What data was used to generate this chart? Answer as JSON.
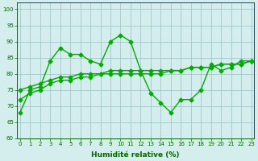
{
  "line1": {
    "x": [
      0,
      1,
      2,
      3,
      4,
      5,
      6,
      7,
      8,
      9,
      10,
      11,
      12,
      13,
      14,
      15,
      16,
      17,
      18,
      19,
      20,
      21,
      22,
      23
    ],
    "y": [
      68,
      75,
      76,
      84,
      88,
      86,
      86,
      84,
      83,
      90,
      92,
      90,
      81,
      74,
      71,
      68,
      72,
      72,
      75,
      83,
      81,
      82,
      84,
      84
    ]
  },
  "line2": {
    "x": [
      0,
      1,
      2,
      3,
      4,
      5,
      6,
      7,
      8,
      9,
      10,
      11,
      12,
      13,
      14,
      15,
      16,
      17,
      18,
      19,
      20,
      21,
      22,
      23
    ],
    "y": [
      72,
      74,
      75,
      77,
      78,
      78,
      79,
      79,
      80,
      80,
      80,
      80,
      80,
      80,
      80,
      81,
      81,
      82,
      82,
      82,
      83,
      83,
      83,
      84
    ]
  },
  "line3": {
    "x": [
      0,
      1,
      2,
      3,
      4,
      5,
      6,
      7,
      8,
      9,
      10,
      11,
      12,
      13,
      14,
      15,
      16,
      17,
      18,
      19,
      20,
      21,
      22,
      23
    ],
    "y": [
      75,
      76,
      77,
      78,
      79,
      79,
      80,
      80,
      80,
      81,
      81,
      81,
      81,
      81,
      81,
      81,
      81,
      82,
      82,
      82,
      83,
      83,
      83,
      84
    ]
  },
  "color": "#00aa00",
  "bg_color": "#d4eeed",
  "grid_color": "#a0c8c8",
  "xlabel": "Humidité relative (%)",
  "ylim": [
    60,
    102
  ],
  "xlim": [
    -0.3,
    23.3
  ],
  "yticks": [
    60,
    65,
    70,
    75,
    80,
    85,
    90,
    95,
    100
  ],
  "xticks": [
    0,
    1,
    2,
    3,
    4,
    5,
    6,
    7,
    8,
    9,
    10,
    11,
    12,
    13,
    14,
    15,
    16,
    17,
    18,
    19,
    20,
    21,
    22,
    23
  ],
  "tick_fontsize": 5.0,
  "xlabel_fontsize": 6.5,
  "linewidth": 1.0,
  "markersize": 2.5
}
